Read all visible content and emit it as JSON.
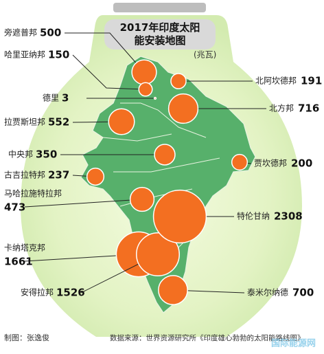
{
  "title": "2017年印度太阳能安装地图",
  "unit": "(兆瓦)",
  "regions": [
    {
      "name": "旁遮普邦",
      "value": 500
    },
    {
      "name": "哈里亚纳邦",
      "value": 150
    },
    {
      "name": "德里",
      "value": 3
    },
    {
      "name": "拉贾斯坦邦",
      "value": 552
    },
    {
      "name": "中央邦",
      "value": 350
    },
    {
      "name": "古吉拉特邦",
      "value": 237
    },
    {
      "name": "马哈拉施特拉邦",
      "value": 473
    },
    {
      "name": "卡纳塔克邦",
      "value": 1661
    },
    {
      "name": "安得拉邦",
      "value": 1526
    },
    {
      "name": "北阿坎德邦",
      "value": 191
    },
    {
      "name": "北方邦",
      "value": 716
    },
    {
      "name": "贾坎德邦",
      "value": 200
    },
    {
      "name": "特伦甘纳",
      "value": 2308
    },
    {
      "name": "泰米尔纳德",
      "value": 700
    }
  ],
  "credit": "制图：张逸俊",
  "source": "数据来源：世界资源研究所《印度雄心勃勃的太阳能路线图》",
  "watermark": "国际能源网"
}
